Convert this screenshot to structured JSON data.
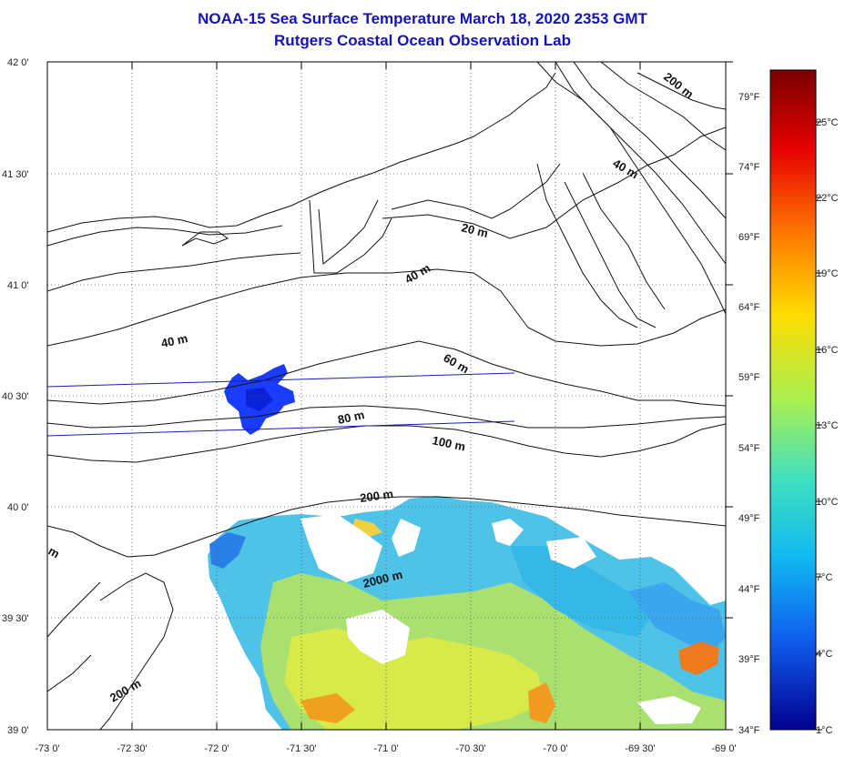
{
  "header": {
    "title": "NOAA-15 Sea Surface Temperature March 18, 2020 2353 GMT",
    "subtitle": "Rutgers Coastal Ocean Observation Lab"
  },
  "axes": {
    "lat_labels": [
      "42 0'",
      "41 30'",
      "41 0'",
      "40 30'",
      "40 0'",
      "39 30'",
      "39 0'"
    ],
    "lon_labels": [
      "-73 0'",
      "-72 30'",
      "-72 0'",
      "-71 30'",
      "-71 0'",
      "-70 30'",
      "-70 0'",
      "-69 30'",
      "-69 0'"
    ]
  },
  "colorbar": {
    "celsius": [
      "25°C",
      "22°C",
      "19°C",
      "16°C",
      "13°C",
      "10°C",
      "7°C",
      "4°C",
      "1°C"
    ],
    "fahrenheit": [
      "79°F",
      "74°F",
      "69°F",
      "64°F",
      "59°F",
      "54°F",
      "49°F",
      "44°F",
      "39°F",
      "34°F"
    ],
    "colors": [
      "#00007f",
      "#0000ff",
      "#007fff",
      "#00ffff",
      "#7fff7f",
      "#ffff00",
      "#ff7f00",
      "#ff0000",
      "#7f0000"
    ]
  },
  "contour_labels": [
    "200 m",
    "40 m",
    "20 m",
    "40 m",
    "40 m",
    "60 m",
    "80 m",
    "100 m",
    "200 m",
    "2000 m",
    "200 m",
    "m"
  ]
}
